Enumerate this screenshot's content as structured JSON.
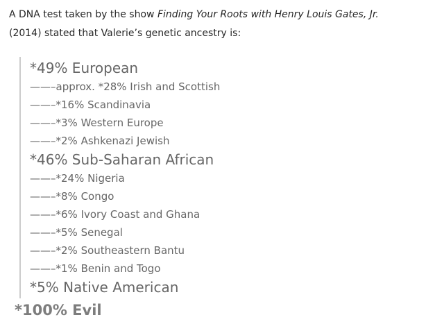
{
  "page": {
    "background_color": "#ffffff"
  },
  "intro": {
    "line1_regular": "A DNA test taken by the show ",
    "line1_italic": "Finding Your Roots with Henry Louis Gates, Jr.",
    "line2": "(2014) stated that Valerie’s genetic ancestry is:"
  },
  "quote": {
    "border_color": "#cccccc",
    "text_color": "#666666",
    "entries": [
      {
        "level": "heading",
        "text": "*49% European"
      },
      {
        "level": "item",
        "text": "——–approx. *28% Irish and Scottish"
      },
      {
        "level": "item",
        "text": "——–*16% Scandinavia"
      },
      {
        "level": "item",
        "text": "——–*3% Western Europe"
      },
      {
        "level": "item",
        "text": "——–*2% Ashkenazi Jewish"
      },
      {
        "level": "heading",
        "text": "*46% Sub-Saharan African"
      },
      {
        "level": "item",
        "text": "——–*24% Nigeria"
      },
      {
        "level": "item",
        "text": "——–*8% Congo"
      },
      {
        "level": "item",
        "text": "——–*6% Ivory Coast and Ghana"
      },
      {
        "level": "item",
        "text": "——–*5% Senegal"
      },
      {
        "level": "item",
        "text": "——–*2% Southeastern Bantu"
      },
      {
        "level": "item",
        "text": "——–*1% Benin and Togo"
      },
      {
        "level": "heading",
        "text": "*5% Native American"
      }
    ]
  },
  "footer_line": {
    "text": "*100% Evil",
    "color": "#7d7d7d"
  }
}
